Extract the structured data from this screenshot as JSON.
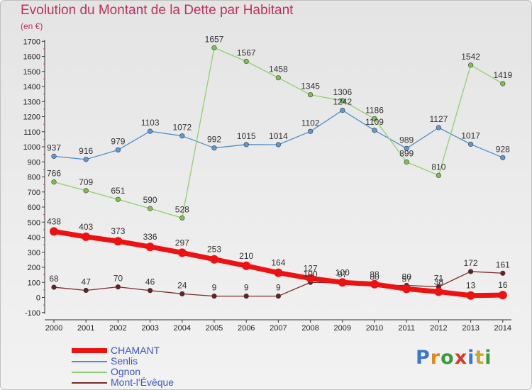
{
  "title": "Evolution du Montant de la Dette par Habitant",
  "subtitle": "(en €)",
  "logo": {
    "text": "Proxiti",
    "letter_colors": [
      "#3a78c8",
      "#e08a1e",
      "#3a9c3a",
      "#d63a2a",
      "#3a78c8",
      "#c8a82a",
      "#3a9c3a"
    ]
  },
  "chart_data": {
    "type": "line",
    "title": "Evolution du Montant de la Dette par Habitant",
    "subtitle": "(en €)",
    "x": [
      "2000",
      "2001",
      "2002",
      "2003",
      "2004",
      "2005",
      "2006",
      "2007",
      "2008",
      "2009",
      "2010",
      "2011",
      "2012",
      "2013",
      "2014"
    ],
    "ylim": [
      -100,
      1700
    ],
    "yticks": [
      "-100",
      "0",
      "100",
      "200",
      "300",
      "400",
      "500",
      "600",
      "700",
      "800",
      "900",
      "1000",
      "1100",
      "1200",
      "1300",
      "1400",
      "1500",
      "1600",
      "1700"
    ],
    "grid": false,
    "legend_position": "bottom-left",
    "series": [
      {
        "name": "Senlis",
        "color": "#4d8fcb",
        "marker": "#5b9bd5",
        "values": [
          937,
          916,
          979,
          1103,
          1072,
          992,
          1015,
          1014,
          1102,
          1242,
          1109,
          989,
          1127,
          1017,
          928
        ],
        "labels": [
          "937",
          "916",
          "979",
          "1103",
          "1072",
          "992",
          "1015",
          "1014",
          "1102",
          "1242",
          "1109",
          "989",
          "1127",
          "1017",
          "928"
        ]
      },
      {
        "name": "Ognon",
        "color": "#8fd16a",
        "marker": "#7cc34a",
        "values": [
          766,
          709,
          651,
          590,
          528,
          1657,
          1567,
          1458,
          1345,
          1306,
          1186,
          899,
          810,
          1542,
          1419
        ],
        "labels": [
          "766",
          "709",
          "651",
          "590",
          "528",
          "1657",
          "1567",
          "1458",
          "1345",
          "1306",
          "1186",
          "899",
          "810",
          "1542",
          "1419"
        ]
      },
      {
        "name": "Mont-l'Évêque",
        "color": "#7a2a2a",
        "marker": "#6b1f1f",
        "values": [
          68,
          47,
          70,
          46,
          24,
          9,
          9,
          9,
          100,
          97,
          80,
          80,
          71,
          172,
          161
        ],
        "labels": [
          "68",
          "47",
          "70",
          "46",
          "24",
          "9",
          "9",
          "9",
          "100",
          "97",
          "80",
          "80",
          "71",
          "172",
          "161"
        ]
      },
      {
        "name": "CHAMANT",
        "color": "#ee1111",
        "marker": "#ee1111",
        "values": [
          438,
          403,
          373,
          336,
          297,
          253,
          210,
          164,
          127,
          100,
          88,
          57,
          38,
          13,
          16
        ],
        "labels": [
          "438",
          "403",
          "373",
          "336",
          "297",
          "253",
          "210",
          "164",
          "127",
          "100",
          "88",
          "57",
          "38",
          "13",
          "16"
        ]
      }
    ]
  },
  "legend": [
    {
      "name": "CHAMANT",
      "color": "#ee1111",
      "thickness": 7
    },
    {
      "name": "Senlis",
      "color": "#4d8fcb",
      "thickness": 2
    },
    {
      "name": "Ognon",
      "color": "#8fd16a",
      "thickness": 2
    },
    {
      "name": "Mont-l'Évêque",
      "color": "#7a2a2a",
      "thickness": 2
    }
  ]
}
